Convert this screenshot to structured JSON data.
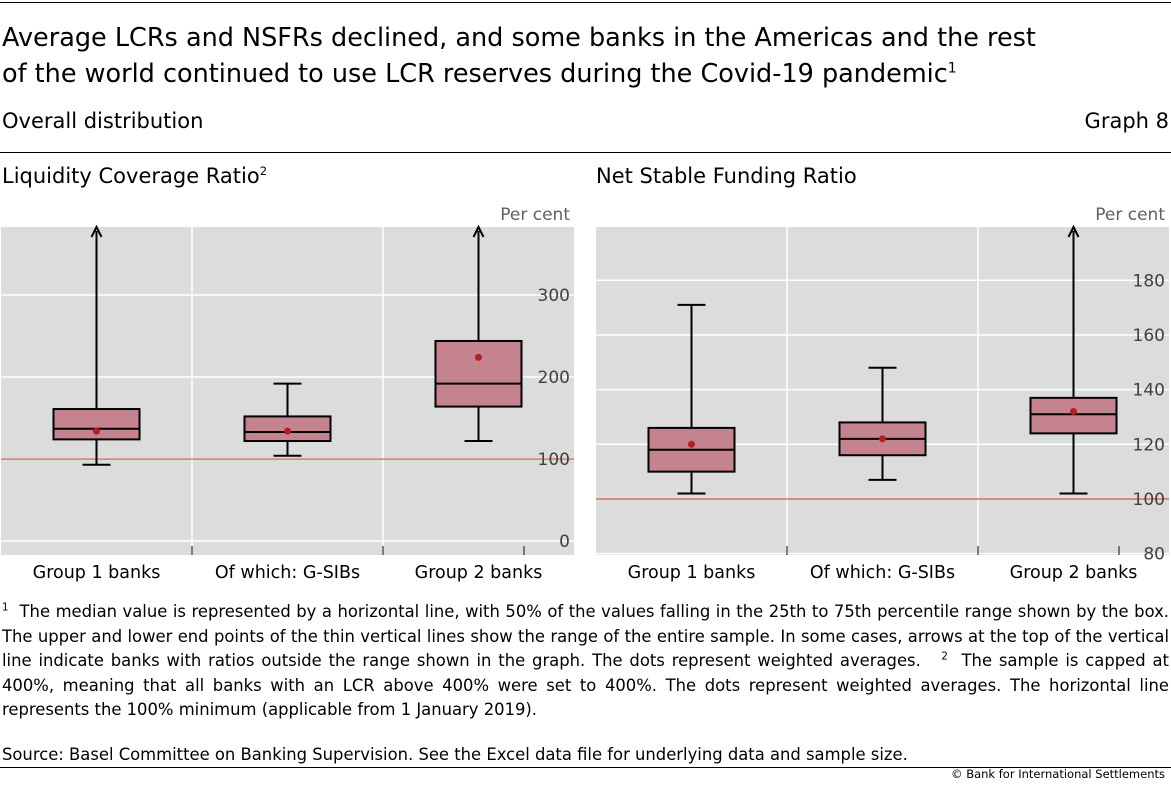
{
  "title_line1": "Average LCRs and NSFRs declined, and some banks in the Americas and the rest",
  "title_line2": "of the world continued to use LCR reserves during the Covid-19 pandemic",
  "title_footnote_ref": "1",
  "subtitle": "Overall distribution",
  "graph_label": "Graph 8",
  "footnote1_marker": "1",
  "footnote1_text": "The median value is represented by a horizontal line, with 50% of the values falling in the 25th to 75th percentile range shown by the box. The upper and lower end points of the thin vertical lines show the range of the entire sample. In some cases, arrows at the top of the vertical line indicate banks with ratios outside the range shown in the graph. The dots represent weighted averages.",
  "footnote2_marker": "2",
  "footnote2_text": "The sample is capped at 400%, meaning that all banks with an LCR above 400% were set to 400%. The dots represent weighted averages. The horizontal line represents the 100% minimum (applicable from 1 January 2019).",
  "source": "Source: Basel Committee on Banking Supervision. See the Excel data file for underlying data and sample size.",
  "copyright": "© Bank for International Settlements",
  "colors": {
    "plot_background": "#dcdcdc",
    "box_fill": "#c4838f",
    "dot": "#b2201c",
    "reference_line": "#c0504d",
    "text_gray": "#404040"
  },
  "chart_data": [
    {
      "type": "box",
      "title": "Liquidity Coverage Ratio",
      "title_footnote_ref": "2",
      "unit_label": "Per cent",
      "categories": [
        "Group 1 banks",
        "Of which: G-SIBs",
        "Group 2 banks"
      ],
      "ylim": [
        -17,
        383
      ],
      "yticks": [
        0,
        100,
        200,
        300
      ],
      "reference_line": 100,
      "boxes": [
        {
          "min": 93,
          "q1": 124,
          "median": 137,
          "q3": 161,
          "max": 400,
          "mean": 134,
          "arrow": true
        },
        {
          "min": 104,
          "q1": 122,
          "median": 133,
          "q3": 152,
          "max": 192,
          "mean": 134,
          "arrow": false
        },
        {
          "min": 122,
          "q1": 164,
          "median": 192,
          "q3": 244,
          "max": 400,
          "mean": 224,
          "arrow": true
        }
      ],
      "grid": true
    },
    {
      "type": "box",
      "title": "Net Stable Funding Ratio",
      "unit_label": "Per cent",
      "categories": [
        "Group 1 banks",
        "Of which: G-SIBs",
        "Group 2 banks"
      ],
      "ylim": [
        79.5,
        199.5
      ],
      "yticks": [
        80,
        100,
        120,
        140,
        160,
        180
      ],
      "reference_line": 100,
      "boxes": [
        {
          "min": 102,
          "q1": 110,
          "median": 118,
          "q3": 126,
          "max": 171,
          "mean": 120,
          "arrow": false
        },
        {
          "min": 107,
          "q1": 116,
          "median": 122,
          "q3": 128,
          "max": 148,
          "mean": 122,
          "arrow": false
        },
        {
          "min": 102,
          "q1": 124,
          "median": 131,
          "q3": 137,
          "max": 199.5,
          "mean": 132,
          "arrow": true
        }
      ],
      "grid": true
    }
  ]
}
